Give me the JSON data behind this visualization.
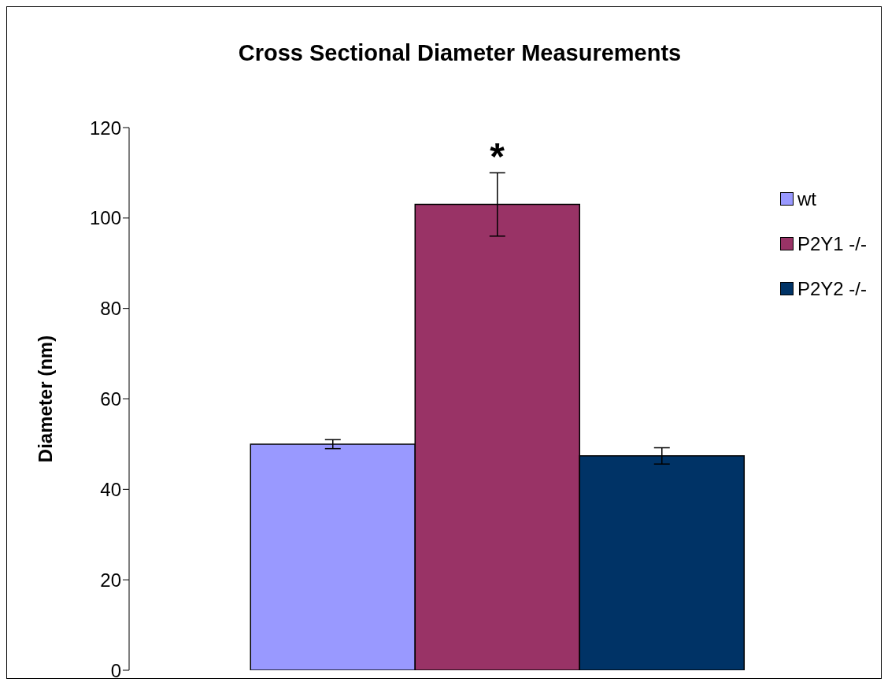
{
  "chart_data": {
    "type": "bar",
    "title": "Cross Sectional Diameter Measurements",
    "ylabel": "Diameter (nm)",
    "categories": [
      null
    ],
    "series": [
      {
        "name": "wt",
        "color": "#9999ff",
        "values": [
          50
        ],
        "errors": [
          1
        ]
      },
      {
        "name": "P2Y1 -/-",
        "color": "#993366",
        "values": [
          103
        ],
        "errors": [
          7
        ]
      },
      {
        "name": "P2Y2 -/-",
        "color": "#003366",
        "values": [
          47.4
        ],
        "errors": [
          1.8
        ]
      }
    ],
    "ylim": [
      0,
      120
    ],
    "yticks": [
      0,
      20,
      40,
      60,
      80,
      100,
      120
    ],
    "grid": false,
    "legend": "top right",
    "annotations": [
      "*"
    ]
  }
}
